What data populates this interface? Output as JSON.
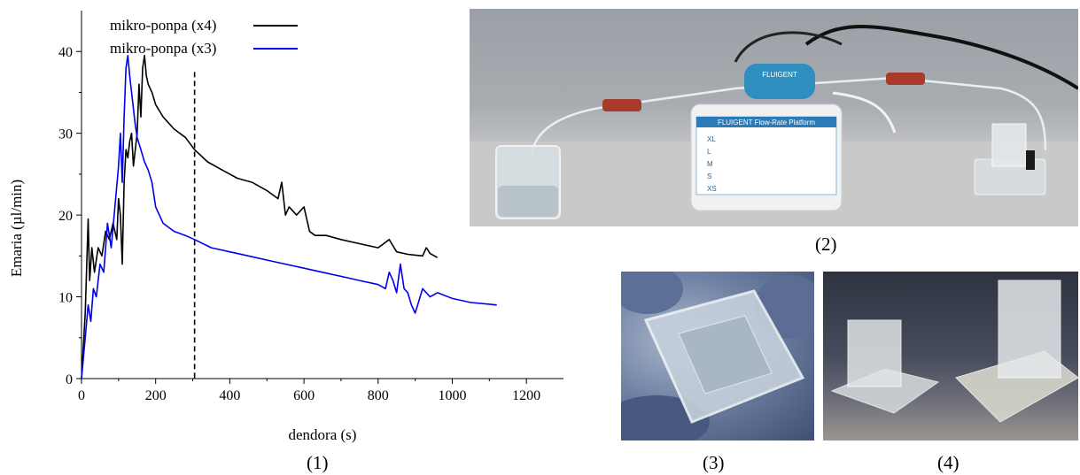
{
  "chart_data": {
    "type": "line",
    "title": "",
    "xlabel": "dendora (s)",
    "ylabel": "Emaria (µl/min)",
    "xlim": [
      0,
      1300
    ],
    "ylim": [
      0,
      45
    ],
    "xticks": [
      0,
      200,
      400,
      600,
      800,
      1000,
      1200
    ],
    "yticks": [
      0,
      10,
      20,
      30,
      40
    ],
    "grid": false,
    "legend": "top-left",
    "vline": {
      "x": 305,
      "style": "dashed"
    },
    "series": [
      {
        "name": "mikro-ponpa (x4)",
        "color": "#000000",
        "x": [
          0,
          10,
          18,
          22,
          28,
          35,
          45,
          55,
          65,
          75,
          85,
          95,
          100,
          105,
          110,
          115,
          120,
          125,
          130,
          135,
          140,
          145,
          150,
          155,
          160,
          165,
          170,
          175,
          180,
          190,
          200,
          220,
          250,
          280,
          305,
          340,
          380,
          420,
          460,
          500,
          530,
          540,
          550,
          560,
          580,
          600,
          615,
          630,
          660,
          700,
          750,
          800,
          830,
          850,
          880,
          900,
          920,
          930,
          940,
          960
        ],
        "y": [
          0,
          8,
          19.5,
          12,
          16,
          13,
          16,
          15,
          18,
          17,
          19,
          17,
          22,
          20,
          14,
          24,
          28,
          27,
          29,
          30,
          26,
          28,
          30,
          36,
          32,
          38,
          39.5,
          37,
          36,
          35,
          33.5,
          32,
          30.5,
          29.5,
          28,
          26.5,
          25.5,
          24.5,
          24,
          23,
          22,
          24,
          20,
          21,
          20,
          21,
          18,
          17.5,
          17.5,
          17,
          16.5,
          16,
          17,
          15.5,
          15.2,
          15.1,
          15,
          16,
          15.3,
          14.8
        ]
      },
      {
        "name": "mikro-ponpa (x3)",
        "color": "#0000ee",
        "x": [
          0,
          10,
          18,
          25,
          32,
          40,
          50,
          60,
          70,
          80,
          90,
          100,
          105,
          110,
          115,
          120,
          125,
          130,
          135,
          140,
          145,
          150,
          160,
          170,
          180,
          190,
          200,
          220,
          250,
          280,
          305,
          350,
          400,
          450,
          500,
          550,
          600,
          650,
          700,
          750,
          800,
          820,
          830,
          840,
          850,
          860,
          870,
          880,
          890,
          900,
          920,
          940,
          960,
          1000,
          1050,
          1100,
          1120
        ],
        "y": [
          0,
          5,
          9,
          7,
          11,
          10,
          14,
          13,
          19,
          16,
          21,
          26,
          30,
          24,
          32,
          38,
          39.5,
          37,
          35,
          33,
          31,
          29.5,
          28,
          26.5,
          25.5,
          24,
          21,
          19,
          18,
          17.5,
          17,
          16,
          15.5,
          15,
          14.5,
          14,
          13.5,
          13,
          12.5,
          12,
          11.5,
          11,
          13,
          12,
          10.5,
          14,
          11,
          10.5,
          9,
          8,
          11,
          10,
          10.5,
          9.8,
          9.3,
          9.1,
          9
        ]
      }
    ]
  },
  "labels": {
    "panel_1": "(1)",
    "panel_2": "(2)",
    "panel_3": "(3)",
    "panel_4": "(4)",
    "device_header": "FLUIGENT Flow-Rate Platform",
    "device_brand": "FLUIGENT",
    "table_rows": [
      "XL",
      "L",
      "M",
      "S",
      "XS"
    ]
  }
}
